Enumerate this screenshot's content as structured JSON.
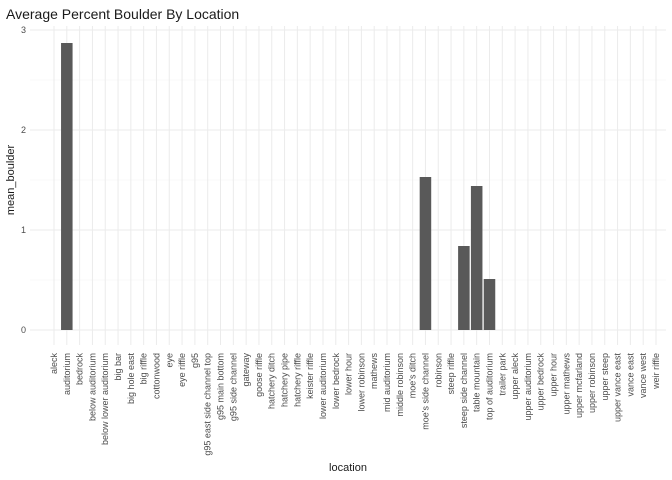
{
  "chart_data": {
    "type": "bar",
    "title": "Average Percent Boulder By Location",
    "xlabel": "location",
    "ylabel": "mean_boulder",
    "ylim": [
      0,
      3
    ],
    "yticks": [
      0,
      1,
      2,
      3
    ],
    "grid": true,
    "bar_color": "#595959",
    "categories": [
      "aleck",
      "auditorium",
      "bedrock",
      "below auditorium",
      "below lower auditorium",
      "big bar",
      "big hole east",
      "big riffle",
      "cottonwood",
      "eye",
      "eye riffle",
      "g95",
      "g95 east side channel top",
      "g95 main bottom",
      "g95 side channel",
      "gateway",
      "goose riffle",
      "hatchery ditch",
      "hatchery pipe",
      "hatchery riffle",
      "keister riffle",
      "lower auditorium",
      "lower bedrock",
      "lower hour",
      "lower robinson",
      "mathews",
      "mid auditorium",
      "middle robinson",
      "moe's ditch",
      "moe's side channel",
      "robinson",
      "steep riffle",
      "steep side channel",
      "table mountain",
      "top of auditorium",
      "trailer park",
      "upper aleck",
      "upper auditorium",
      "upper bedrock",
      "upper hour",
      "upper mathews",
      "upper mcfarland",
      "upper robinson",
      "upper steep",
      "upper vance east",
      "vance east",
      "vance west",
      "weir riffle"
    ],
    "values": [
      0,
      2.87,
      0,
      0,
      0,
      0,
      0,
      0,
      0,
      0,
      0,
      0,
      0,
      0,
      0,
      0,
      0,
      0,
      0,
      0,
      0,
      0,
      0,
      0,
      0,
      0,
      0,
      0,
      0,
      1.53,
      0,
      0,
      0.84,
      1.44,
      0.51,
      0,
      0,
      0,
      0,
      0,
      0,
      0,
      0,
      0,
      0,
      0,
      0,
      0
    ]
  }
}
